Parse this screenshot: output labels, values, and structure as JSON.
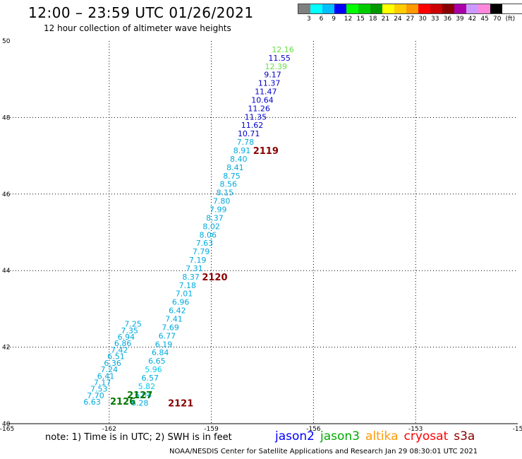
{
  "header": {
    "title": "12:00 – 23:59 UTC 01/26/2021",
    "subtitle": "12 hour collection of altimeter wave heights"
  },
  "legend": {
    "colors": [
      "#808080",
      "#00ffff",
      "#00bfff",
      "#0000ff",
      "#00ff00",
      "#00cc00",
      "#009900",
      "#ffff00",
      "#ffcc00",
      "#ff9900",
      "#ff0000",
      "#cc0000",
      "#880000",
      "#aa00aa",
      "#cc99ff",
      "#ff88dd",
      "#000000"
    ],
    "labels": [
      "3",
      "6",
      "9",
      "12",
      "15",
      "18",
      "21",
      "24",
      "27",
      "30",
      "33",
      "36",
      "39",
      "42",
      "45",
      "70",
      "(ft)"
    ]
  },
  "axes": {
    "lon_labels": [
      "-165",
      "-162",
      "-159",
      "-156",
      "-153",
      "-15"
    ],
    "lat_labels": [
      "50",
      "48",
      "46",
      "44",
      "42",
      "40"
    ]
  },
  "track_points": [
    {
      "v": "12.16",
      "lon": -156.9,
      "lat": 49.78,
      "c": "#66dd44"
    },
    {
      "v": "11.55",
      "lon": -157.0,
      "lat": 49.56,
      "c": "#0000cc"
    },
    {
      "v": "12.39",
      "lon": -157.1,
      "lat": 49.34,
      "c": "#66dd44"
    },
    {
      "v": "9.17",
      "lon": -157.2,
      "lat": 49.12,
      "c": "#0000cc"
    },
    {
      "v": "11.37",
      "lon": -157.3,
      "lat": 48.9,
      "c": "#0000cc"
    },
    {
      "v": "11.47",
      "lon": -157.4,
      "lat": 48.68,
      "c": "#0000cc"
    },
    {
      "v": "10.64",
      "lon": -157.5,
      "lat": 48.46,
      "c": "#0000cc"
    },
    {
      "v": "11.26",
      "lon": -157.6,
      "lat": 48.24,
      "c": "#0000cc"
    },
    {
      "v": "11.35",
      "lon": -157.7,
      "lat": 48.02,
      "c": "#0000cc"
    },
    {
      "v": "11.62",
      "lon": -157.8,
      "lat": 47.8,
      "c": "#0000cc"
    },
    {
      "v": "10.71",
      "lon": -157.9,
      "lat": 47.58,
      "c": "#0000cc"
    },
    {
      "v": "7.78",
      "lon": -158.0,
      "lat": 47.36,
      "c": "#00aadd"
    },
    {
      "v": "8.91",
      "lon": -158.1,
      "lat": 47.14,
      "c": "#00aadd"
    },
    {
      "v": "8.40",
      "lon": -158.2,
      "lat": 46.92,
      "c": "#00aadd"
    },
    {
      "v": "8.41",
      "lon": -158.3,
      "lat": 46.7,
      "c": "#00aadd"
    },
    {
      "v": "8.75",
      "lon": -158.4,
      "lat": 46.48,
      "c": "#00aadd"
    },
    {
      "v": "8.56",
      "lon": -158.5,
      "lat": 46.26,
      "c": "#00aadd"
    },
    {
      "v": "8.15",
      "lon": -158.6,
      "lat": 46.04,
      "c": "#00aadd"
    },
    {
      "v": "7.80",
      "lon": -158.7,
      "lat": 45.82,
      "c": "#00aadd"
    },
    {
      "v": "7.99",
      "lon": -158.8,
      "lat": 45.6,
      "c": "#00aadd"
    },
    {
      "v": "8.37",
      "lon": -158.9,
      "lat": 45.38,
      "c": "#00aadd"
    },
    {
      "v": "8.02",
      "lon": -159.0,
      "lat": 45.16,
      "c": "#00aadd"
    },
    {
      "v": "8.06",
      "lon": -159.1,
      "lat": 44.94,
      "c": "#00aadd"
    },
    {
      "v": "7.63",
      "lon": -159.2,
      "lat": 44.72,
      "c": "#00aadd"
    },
    {
      "v": "7.79",
      "lon": -159.3,
      "lat": 44.5,
      "c": "#00aadd"
    },
    {
      "v": "7.19",
      "lon": -159.4,
      "lat": 44.28,
      "c": "#00aadd"
    },
    {
      "v": "7.31",
      "lon": -159.5,
      "lat": 44.06,
      "c": "#00aadd"
    },
    {
      "v": "8.37",
      "lon": -159.6,
      "lat": 43.84,
      "c": "#00aadd"
    },
    {
      "v": "7.18",
      "lon": -159.7,
      "lat": 43.62,
      "c": "#00aadd"
    },
    {
      "v": "7.01",
      "lon": -159.8,
      "lat": 43.4,
      "c": "#00aadd"
    },
    {
      "v": "6.96",
      "lon": -159.9,
      "lat": 43.18,
      "c": "#00aadd"
    },
    {
      "v": "6.42",
      "lon": -160.0,
      "lat": 42.96,
      "c": "#00aadd"
    },
    {
      "v": "7.41",
      "lon": -160.1,
      "lat": 42.74,
      "c": "#00aadd"
    },
    {
      "v": "7.69",
      "lon": -160.2,
      "lat": 42.52,
      "c": "#00aadd"
    },
    {
      "v": "6.77",
      "lon": -160.3,
      "lat": 42.3,
      "c": "#00aadd"
    },
    {
      "v": "6.19",
      "lon": -160.4,
      "lat": 42.08,
      "c": "#00aadd"
    },
    {
      "v": "6.84",
      "lon": -160.5,
      "lat": 41.86,
      "c": "#00aadd"
    },
    {
      "v": "6.65",
      "lon": -160.6,
      "lat": 41.64,
      "c": "#00aadd"
    },
    {
      "v": "5.96",
      "lon": -160.7,
      "lat": 41.42,
      "c": "#00ccee"
    },
    {
      "v": "6.57",
      "lon": -160.8,
      "lat": 41.2,
      "c": "#00aadd"
    },
    {
      "v": "5.82",
      "lon": -160.9,
      "lat": 40.98,
      "c": "#00ccee"
    },
    {
      "v": "6.04",
      "lon": -161.0,
      "lat": 40.76,
      "c": "#00aadd"
    },
    {
      "v": "6.28",
      "lon": -161.1,
      "lat": 40.54,
      "c": "#00aadd"
    },
    {
      "v": "7.25",
      "lon": -161.3,
      "lat": 42.61,
      "c": "#00aadd"
    },
    {
      "v": "7.35",
      "lon": -161.4,
      "lat": 42.44,
      "c": "#00aadd"
    },
    {
      "v": "6.94",
      "lon": -161.5,
      "lat": 42.27,
      "c": "#00aadd"
    },
    {
      "v": "6.86",
      "lon": -161.6,
      "lat": 42.1,
      "c": "#00aadd"
    },
    {
      "v": "7.42",
      "lon": -161.7,
      "lat": 41.93,
      "c": "#00aadd"
    },
    {
      "v": "6.51",
      "lon": -161.8,
      "lat": 41.76,
      "c": "#00aadd"
    },
    {
      "v": "6.36",
      "lon": -161.9,
      "lat": 41.59,
      "c": "#00aadd"
    },
    {
      "v": "7.24",
      "lon": -162.0,
      "lat": 41.42,
      "c": "#00aadd"
    },
    {
      "v": "6.41",
      "lon": -162.1,
      "lat": 41.25,
      "c": "#00aadd"
    },
    {
      "v": "7.17",
      "lon": -162.2,
      "lat": 41.08,
      "c": "#00aadd"
    },
    {
      "v": "7.53",
      "lon": -162.3,
      "lat": 40.91,
      "c": "#00aadd"
    },
    {
      "v": "7.70",
      "lon": -162.4,
      "lat": 40.74,
      "c": "#00aadd"
    },
    {
      "v": "6.63",
      "lon": -162.5,
      "lat": 40.57,
      "c": "#00aadd"
    }
  ],
  "revolutions": [
    {
      "label": "2119",
      "lon": -157.4,
      "lat": 47.14,
      "c": "#880000"
    },
    {
      "label": "2120",
      "lon": -158.9,
      "lat": 43.84,
      "c": "#880000"
    },
    {
      "label": "2121",
      "lon": -159.9,
      "lat": 40.54,
      "c": "#880000"
    },
    {
      "label": "2127",
      "lon": -161.1,
      "lat": 40.76,
      "c": "#007700"
    },
    {
      "label": "2126",
      "lon": -161.6,
      "lat": 40.59,
      "c": "#007700"
    }
  ],
  "footer": {
    "note": "note:  1) Time is in UTC;  2) SWH is in feet",
    "satellites": [
      {
        "name": "jason2",
        "color": "#0000ff"
      },
      {
        "name": "jason3",
        "color": "#00aa00"
      },
      {
        "name": "altika",
        "color": "#ff9900"
      },
      {
        "name": "cryosat",
        "color": "#ff0000"
      },
      {
        "name": "s3a",
        "color": "#880000"
      }
    ],
    "credit": "NOAA/NESDIS Center for Satellite Applications and Research    Jan 29 08:30:01 UTC 2021"
  }
}
